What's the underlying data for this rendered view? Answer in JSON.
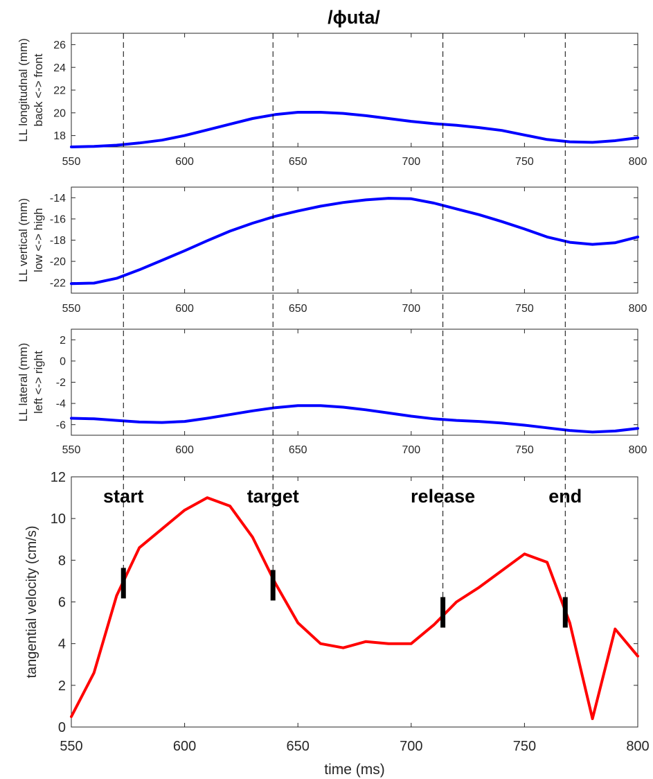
{
  "title": "/ɸuta/",
  "chart_data": [
    {
      "type": "line",
      "id": "longitudinal",
      "ylabel": [
        "LL longitudnal (mm)",
        "back <-> front"
      ],
      "xlim": [
        550,
        800
      ],
      "ylim": [
        17,
        27
      ],
      "yticks": [
        18,
        20,
        22,
        24,
        26
      ],
      "xticks": [
        550,
        600,
        650,
        700,
        750,
        800
      ],
      "color": "#0000ff",
      "x": [
        550,
        560,
        570,
        580,
        590,
        600,
        610,
        620,
        630,
        640,
        650,
        660,
        670,
        680,
        690,
        700,
        710,
        720,
        730,
        740,
        750,
        760,
        770,
        780,
        790,
        800
      ],
      "y": [
        17.0,
        17.05,
        17.15,
        17.35,
        17.6,
        18.0,
        18.5,
        19.0,
        19.5,
        19.85,
        20.05,
        20.05,
        19.95,
        19.75,
        19.5,
        19.25,
        19.05,
        18.9,
        18.7,
        18.45,
        18.05,
        17.65,
        17.45,
        17.4,
        17.55,
        17.8
      ]
    },
    {
      "type": "line",
      "id": "vertical",
      "ylabel": [
        "LL vertical (mm)",
        "low <-> high"
      ],
      "xlim": [
        550,
        800
      ],
      "ylim": [
        -23,
        -13
      ],
      "yticks": [
        -22,
        -20,
        -18,
        -16,
        -14
      ],
      "xticks": [
        550,
        600,
        650,
        700,
        750,
        800
      ],
      "color": "#0000ff",
      "x": [
        550,
        560,
        570,
        580,
        590,
        600,
        610,
        620,
        630,
        640,
        650,
        660,
        670,
        680,
        690,
        700,
        710,
        720,
        730,
        740,
        750,
        760,
        770,
        780,
        790,
        800
      ],
      "y": [
        -22.1,
        -22.05,
        -21.6,
        -20.8,
        -19.9,
        -19.0,
        -18.05,
        -17.15,
        -16.4,
        -15.75,
        -15.25,
        -14.8,
        -14.45,
        -14.2,
        -14.05,
        -14.1,
        -14.5,
        -15.05,
        -15.6,
        -16.25,
        -16.95,
        -17.7,
        -18.2,
        -18.4,
        -18.25,
        -17.7
      ]
    },
    {
      "type": "line",
      "id": "lateral",
      "ylabel": [
        "LL lateral (mm)",
        "left <-> right"
      ],
      "xlim": [
        550,
        800
      ],
      "ylim": [
        -7,
        3
      ],
      "yticks": [
        -6,
        -4,
        -2,
        0,
        2
      ],
      "xticks": [
        550,
        600,
        650,
        700,
        750,
        800
      ],
      "color": "#0000ff",
      "x": [
        550,
        560,
        570,
        580,
        590,
        600,
        610,
        620,
        630,
        640,
        650,
        660,
        670,
        680,
        690,
        700,
        710,
        720,
        730,
        740,
        750,
        760,
        770,
        780,
        790,
        800
      ],
      "y": [
        -5.4,
        -5.45,
        -5.6,
        -5.75,
        -5.8,
        -5.7,
        -5.4,
        -5.05,
        -4.7,
        -4.4,
        -4.2,
        -4.2,
        -4.35,
        -4.6,
        -4.9,
        -5.2,
        -5.45,
        -5.6,
        -5.7,
        -5.85,
        -6.05,
        -6.3,
        -6.55,
        -6.7,
        -6.6,
        -6.35
      ]
    },
    {
      "type": "line",
      "id": "velocity",
      "ylabel": [
        "tangential velocity (cm/s)"
      ],
      "xlabel": "time (ms)",
      "xlim": [
        550,
        800
      ],
      "ylim": [
        0,
        12
      ],
      "yticks": [
        0,
        2,
        4,
        6,
        8,
        10,
        12
      ],
      "xticks": [
        550,
        600,
        650,
        700,
        750,
        800
      ],
      "color": "#ff0000",
      "x": [
        550,
        560,
        570,
        580,
        590,
        600,
        610,
        620,
        630,
        640,
        650,
        660,
        670,
        680,
        690,
        700,
        710,
        720,
        730,
        740,
        750,
        760,
        770,
        780,
        790,
        800
      ],
      "y": [
        0.5,
        2.6,
        6.3,
        8.6,
        9.5,
        10.4,
        11.0,
        10.6,
        9.1,
        6.9,
        5.0,
        4.0,
        3.8,
        4.1,
        4.0,
        4.0,
        4.9,
        6.0,
        6.7,
        7.5,
        8.3,
        7.9,
        5.0,
        0.4,
        4.7,
        3.4
      ]
    }
  ],
  "events": [
    {
      "label": "start",
      "x": 573,
      "y": 6.9
    },
    {
      "label": "target",
      "x": 639,
      "y": 6.8
    },
    {
      "label": "release",
      "x": 714,
      "y": 5.5
    },
    {
      "label": "end",
      "x": 768,
      "y": 5.5
    }
  ]
}
